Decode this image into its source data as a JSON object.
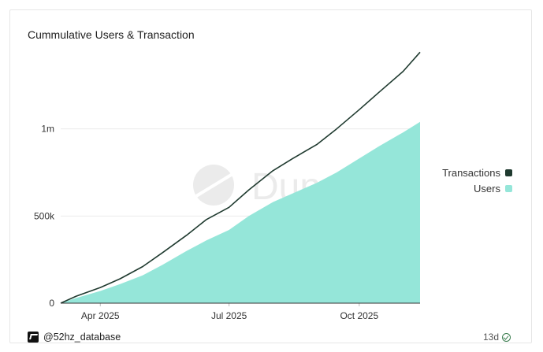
{
  "colors": {
    "transactions": "#1f3a2f",
    "users": "#95e6d9",
    "grid": "#ececec",
    "axis": "#333333",
    "watermark": "#ebebeb"
  },
  "watermark_text": "Dune",
  "footer": {
    "author": "@52hz_database",
    "age": "13d",
    "brand_icon": "dune-logo-icon",
    "age_icon": "check-circle-icon"
  },
  "chart_data": {
    "type": "area",
    "title": "Cummulative Users & Transaction",
    "xlabel": "",
    "ylabel": "",
    "legend_position": "right",
    "grid": true,
    "x_range": [
      "2025-03-04",
      "2025-11-13"
    ],
    "x_ticks": [
      {
        "date": "2025-04-01",
        "label": "Apr 2025"
      },
      {
        "date": "2025-07-01",
        "label": "Jul 2025"
      },
      {
        "date": "2025-10-01",
        "label": "Oct 2025"
      }
    ],
    "ylim": [
      0,
      1500000
    ],
    "y_ticks": [
      {
        "value": 0,
        "label": "0"
      },
      {
        "value": 500000,
        "label": "500k"
      },
      {
        "value": 1000000,
        "label": "1m"
      }
    ],
    "series": [
      {
        "name": "Transactions",
        "type": "line",
        "points": [
          [
            "2025-03-04",
            0
          ],
          [
            "2025-03-15",
            40000
          ],
          [
            "2025-04-01",
            90000
          ],
          [
            "2025-04-15",
            140000
          ],
          [
            "2025-05-01",
            210000
          ],
          [
            "2025-05-15",
            290000
          ],
          [
            "2025-06-01",
            390000
          ],
          [
            "2025-06-15",
            480000
          ],
          [
            "2025-07-01",
            550000
          ],
          [
            "2025-07-15",
            650000
          ],
          [
            "2025-08-01",
            760000
          ],
          [
            "2025-08-15",
            830000
          ],
          [
            "2025-09-01",
            910000
          ],
          [
            "2025-09-15",
            1000000
          ],
          [
            "2025-10-01",
            1110000
          ],
          [
            "2025-10-15",
            1210000
          ],
          [
            "2025-11-01",
            1330000
          ],
          [
            "2025-11-13",
            1440000
          ]
        ]
      },
      {
        "name": "Users",
        "type": "area",
        "points": [
          [
            "2025-03-04",
            0
          ],
          [
            "2025-03-15",
            30000
          ],
          [
            "2025-04-01",
            70000
          ],
          [
            "2025-04-15",
            110000
          ],
          [
            "2025-05-01",
            160000
          ],
          [
            "2025-05-15",
            220000
          ],
          [
            "2025-06-01",
            300000
          ],
          [
            "2025-06-15",
            360000
          ],
          [
            "2025-07-01",
            420000
          ],
          [
            "2025-07-15",
            500000
          ],
          [
            "2025-08-01",
            580000
          ],
          [
            "2025-08-15",
            630000
          ],
          [
            "2025-09-01",
            690000
          ],
          [
            "2025-09-15",
            750000
          ],
          [
            "2025-10-01",
            830000
          ],
          [
            "2025-10-15",
            900000
          ],
          [
            "2025-11-01",
            980000
          ],
          [
            "2025-11-13",
            1040000
          ]
        ]
      }
    ]
  }
}
